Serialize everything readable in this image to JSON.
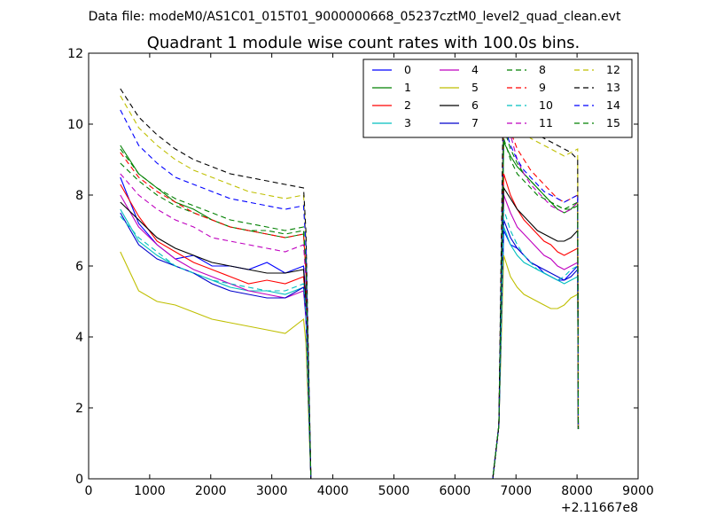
{
  "chart_data": {
    "type": "line",
    "suptitle": "Data file: modeM0/AS1C01_015T01_9000000668_05237cztM0_level2_quad_clean.evt",
    "title": "Quadrant 1 module wise count rates with 100.0s bins.",
    "xlabel": "",
    "ylabel": "",
    "xlim": [
      0,
      9000
    ],
    "ylim": [
      0,
      12
    ],
    "x_ticks": [
      0,
      1000,
      2000,
      3000,
      4000,
      5000,
      6000,
      7000,
      8000,
      9000
    ],
    "y_ticks": [
      0,
      2,
      4,
      6,
      8,
      10,
      12
    ],
    "x_offset_label": "+2.11667e8",
    "legend_position": "upper-right",
    "legend_columns": 4,
    "grid": false,
    "series": [
      {
        "name": "0",
        "color": "#0000ff",
        "dash": "solid",
        "seg1": [
          8.5,
          7.2,
          6.6,
          6.2,
          6.3,
          6.0,
          6.0,
          5.9,
          6.1,
          5.8,
          6.0
        ],
        "seg2": [
          7.0,
          6.6,
          6.5,
          6.3,
          6.1,
          6.0,
          5.8,
          5.7,
          5.6,
          5.6,
          5.8,
          6.0
        ]
      },
      {
        "name": "1",
        "color": "#008000",
        "dash": "solid",
        "seg1": [
          9.4,
          8.6,
          8.2,
          7.8,
          7.6,
          7.3,
          7.1,
          7.0,
          6.9,
          6.8,
          6.9
        ],
        "seg2": [
          9.5,
          9.1,
          8.8,
          8.6,
          8.4,
          8.2,
          8.0,
          7.8,
          7.6,
          7.5,
          7.6,
          7.8
        ]
      },
      {
        "name": "2",
        "color": "#ff0000",
        "dash": "solid",
        "seg1": [
          8.3,
          7.4,
          6.7,
          6.4,
          6.1,
          5.9,
          5.7,
          5.5,
          5.6,
          5.5,
          5.7
        ],
        "seg2": [
          8.6,
          8.0,
          7.6,
          7.3,
          7.1,
          6.9,
          6.7,
          6.6,
          6.4,
          6.3,
          6.4,
          6.5
        ]
      },
      {
        "name": "3",
        "color": "#00bfbf",
        "dash": "solid",
        "seg1": [
          7.6,
          6.7,
          6.3,
          6.0,
          5.8,
          5.6,
          5.4,
          5.3,
          5.3,
          5.2,
          5.4
        ],
        "seg2": [
          7.1,
          6.6,
          6.3,
          6.1,
          6.0,
          5.9,
          5.8,
          5.7,
          5.6,
          5.5,
          5.6,
          5.7
        ]
      },
      {
        "name": "4",
        "color": "#bf00bf",
        "dash": "solid",
        "seg1": [
          8.0,
          7.1,
          6.6,
          6.2,
          5.9,
          5.7,
          5.5,
          5.3,
          5.2,
          5.1,
          5.3
        ],
        "seg2": [
          8.0,
          7.5,
          7.1,
          6.9,
          6.7,
          6.5,
          6.3,
          6.2,
          6.0,
          5.9,
          6.0,
          6.1
        ]
      },
      {
        "name": "5",
        "color": "#bfbf00",
        "dash": "solid",
        "seg1": [
          6.4,
          5.3,
          5.0,
          4.9,
          4.7,
          4.5,
          4.4,
          4.3,
          4.2,
          4.1,
          4.5
        ],
        "seg2": [
          6.3,
          5.7,
          5.4,
          5.2,
          5.1,
          5.0,
          4.9,
          4.8,
          4.8,
          4.9,
          5.1,
          5.2
        ]
      },
      {
        "name": "6",
        "color": "#000000",
        "dash": "solid",
        "seg1": [
          7.8,
          7.3,
          6.8,
          6.5,
          6.3,
          6.1,
          6.0,
          5.9,
          5.8,
          5.8,
          5.9
        ],
        "seg2": [
          8.2,
          7.9,
          7.6,
          7.4,
          7.2,
          7.0,
          6.9,
          6.8,
          6.7,
          6.7,
          6.8,
          7.0
        ]
      },
      {
        "name": "7",
        "color": "#0000cc",
        "dash": "solid",
        "seg1": [
          7.5,
          6.6,
          6.2,
          6.0,
          5.8,
          5.5,
          5.3,
          5.2,
          5.1,
          5.1,
          5.4
        ],
        "seg2": [
          7.3,
          6.8,
          6.5,
          6.3,
          6.1,
          6.0,
          5.9,
          5.8,
          5.7,
          5.6,
          5.7,
          5.9
        ]
      },
      {
        "name": "8",
        "color": "#008000",
        "dash": "dashed",
        "seg1": [
          8.9,
          8.4,
          8.0,
          7.7,
          7.5,
          7.3,
          7.1,
          7.0,
          7.0,
          6.9,
          7.0
        ],
        "seg2": [
          9.9,
          9.3,
          8.9,
          8.6,
          8.4,
          8.2,
          8.0,
          7.8,
          7.7,
          7.6,
          7.6,
          7.7
        ]
      },
      {
        "name": "9",
        "color": "#ff0000",
        "dash": "dashed",
        "seg1": [
          9.2,
          8.5,
          8.1,
          7.8,
          7.5,
          7.3,
          7.1,
          7.0,
          6.9,
          6.8,
          6.9
        ],
        "seg2": [
          10.6,
          9.8,
          9.3,
          9.0,
          8.7,
          8.5,
          8.3,
          8.1,
          7.9,
          7.8,
          7.9,
          8.0
        ]
      },
      {
        "name": "10",
        "color": "#00bfbf",
        "dash": "dashed",
        "seg1": [
          7.4,
          6.8,
          6.4,
          6.0,
          5.8,
          5.6,
          5.5,
          5.4,
          5.3,
          5.3,
          5.5
        ],
        "seg2": [
          7.6,
          7.0,
          6.6,
          6.3,
          6.1,
          5.9,
          5.8,
          5.7,
          5.6,
          5.7,
          5.9,
          6.0
        ]
      },
      {
        "name": "11",
        "color": "#bf00bf",
        "dash": "dashed",
        "seg1": [
          8.6,
          8.0,
          7.6,
          7.3,
          7.1,
          6.8,
          6.7,
          6.6,
          6.5,
          6.4,
          6.6
        ],
        "seg2": [
          11.0,
          9.7,
          9.0,
          8.6,
          8.3,
          8.1,
          7.9,
          7.7,
          7.6,
          7.5,
          7.6,
          7.8
        ]
      },
      {
        "name": "12",
        "color": "#bfbf00",
        "dash": "dashed",
        "seg1": [
          10.8,
          9.9,
          9.4,
          9.0,
          8.7,
          8.5,
          8.3,
          8.1,
          8.0,
          7.9,
          8.0
        ],
        "seg2": [
          10.9,
          10.3,
          10.0,
          9.8,
          9.6,
          9.5,
          9.4,
          9.3,
          9.2,
          9.1,
          9.2,
          9.3
        ]
      },
      {
        "name": "13",
        "color": "#000000",
        "dash": "dashed",
        "seg1": [
          11.0,
          10.2,
          9.7,
          9.3,
          9.0,
          8.8,
          8.6,
          8.5,
          8.4,
          8.3,
          8.2
        ],
        "seg2": [
          11.8,
          10.8,
          10.4,
          10.1,
          9.9,
          9.7,
          9.6,
          9.5,
          9.4,
          9.3,
          9.2,
          9.0
        ]
      },
      {
        "name": "14",
        "color": "#0000ff",
        "dash": "dashed",
        "seg1": [
          10.4,
          9.4,
          8.9,
          8.5,
          8.3,
          8.1,
          7.9,
          7.8,
          7.7,
          7.6,
          7.7
        ],
        "seg2": [
          10.0,
          9.4,
          9.0,
          8.7,
          8.5,
          8.3,
          8.1,
          8.0,
          7.9,
          7.8,
          7.9,
          8.0
        ]
      },
      {
        "name": "15",
        "color": "#008000",
        "dash": "dashed",
        "seg1": [
          9.3,
          8.6,
          8.2,
          7.9,
          7.7,
          7.5,
          7.3,
          7.2,
          7.1,
          7.0,
          7.1
        ],
        "seg2": [
          9.6,
          9.0,
          8.6,
          8.4,
          8.2,
          8.0,
          7.9,
          7.8,
          7.7,
          7.6,
          7.7,
          7.8
        ]
      }
    ]
  }
}
